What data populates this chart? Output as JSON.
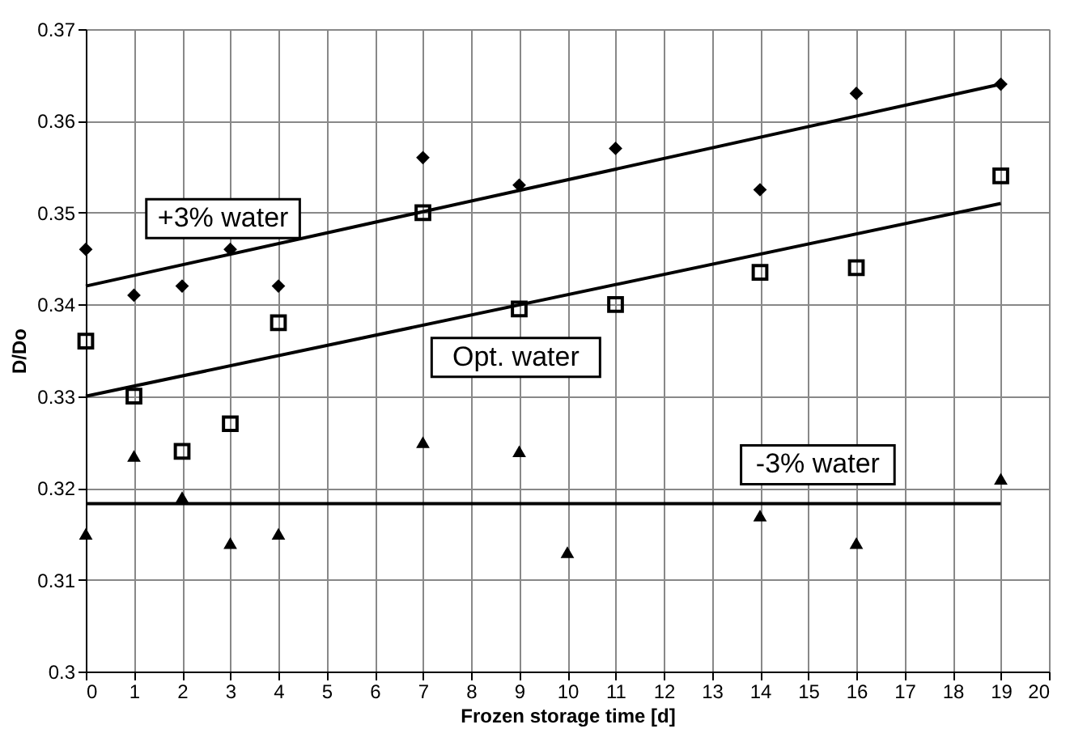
{
  "chart_data": {
    "type": "scatter",
    "xlabel": "Frozen storage time [d]",
    "ylabel": "D/Do",
    "xlim": [
      0,
      20
    ],
    "xticks": [
      0,
      1,
      2,
      3,
      4,
      5,
      6,
      7,
      8,
      9,
      10,
      11,
      12,
      13,
      14,
      15,
      16,
      17,
      18,
      19,
      20
    ],
    "ylim": [
      0.3,
      0.37
    ],
    "yticks": [
      0.3,
      0.31,
      0.32,
      0.33,
      0.34,
      0.35,
      0.36,
      0.37
    ],
    "grid": true,
    "series": [
      {
        "marker": "diamond",
        "color": "#000000",
        "x": [
          0,
          1,
          2,
          3,
          4,
          7,
          9,
          11,
          14,
          16,
          19
        ],
        "values": [
          0.346,
          0.341,
          0.342,
          0.346,
          0.342,
          0.356,
          0.353,
          0.357,
          0.3525,
          0.363,
          0.364
        ]
      },
      {
        "marker": "square",
        "color": "#000000",
        "x": [
          0,
          1,
          2,
          3,
          4,
          7,
          9,
          11,
          14,
          16,
          19
        ],
        "values": [
          0.336,
          0.33,
          0.324,
          0.327,
          0.338,
          0.35,
          0.3395,
          0.34,
          0.3435,
          0.344,
          0.354
        ]
      },
      {
        "marker": "triangle",
        "color": "#000000",
        "x": [
          0,
          1,
          2,
          3,
          4,
          7,
          9,
          10,
          14,
          16,
          19
        ],
        "values": [
          0.315,
          0.3235,
          0.319,
          0.314,
          0.315,
          0.325,
          0.324,
          0.313,
          0.317,
          0.314,
          0.321
        ]
      },
      {
        "type": "line",
        "name": "+3% water",
        "color": "#000000",
        "x": [
          0,
          19
        ],
        "values": [
          0.342,
          0.364
        ]
      },
      {
        "type": "line",
        "name": "Opt. water",
        "color": "#000000",
        "x": [
          0,
          19
        ],
        "values": [
          0.33,
          0.351
        ]
      },
      {
        "type": "line",
        "name": "-3% water",
        "color": "#000000",
        "x": [
          0,
          19
        ],
        "values": [
          0.3183,
          0.3183
        ]
      }
    ]
  }
}
